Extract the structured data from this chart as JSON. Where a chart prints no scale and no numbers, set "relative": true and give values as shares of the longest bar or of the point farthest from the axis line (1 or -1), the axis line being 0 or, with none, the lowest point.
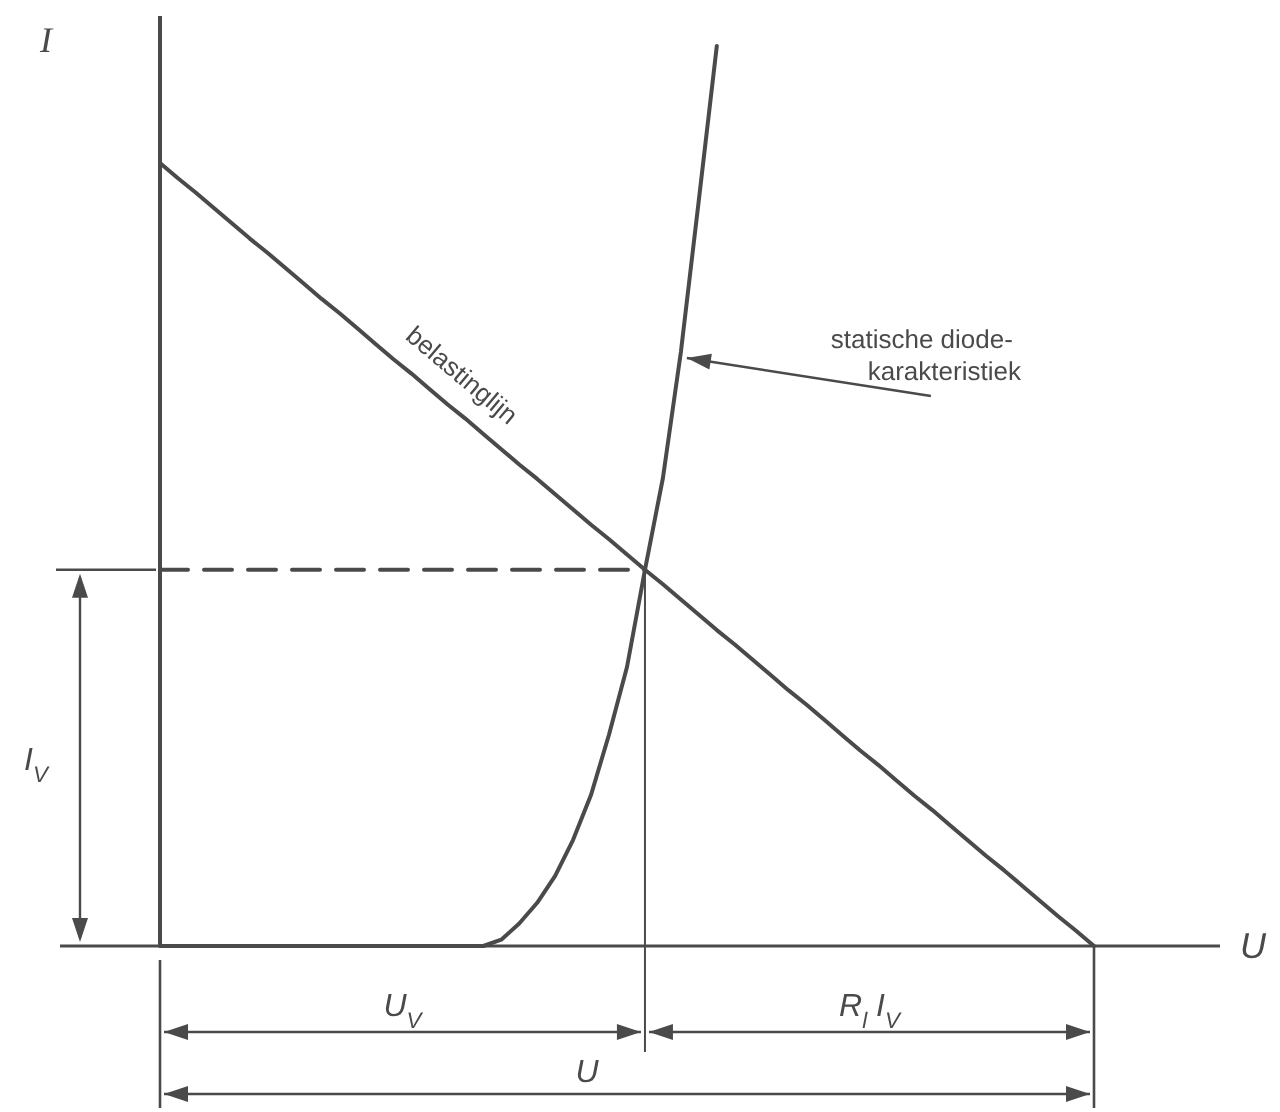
{
  "chart_data": {
    "type": "line",
    "relative": true,
    "xlabel": "U",
    "ylabel": "I",
    "categories": [
      null,
      null,
      null,
      null,
      null,
      null,
      null,
      null,
      null,
      null,
      null,
      null,
      null,
      null,
      null,
      null,
      null,
      null,
      null,
      null,
      null,
      null,
      null,
      null,
      null,
      null,
      null,
      null,
      null,
      null,
      null,
      null,
      null,
      null,
      null,
      null,
      null,
      null,
      null,
      null,
      null,
      null,
      null,
      null,
      null,
      null,
      null,
      null,
      null,
      null,
      null,
      null,
      null
    ],
    "series": [
      {
        "name": "belastinglijn",
        "color": "#4a4a4a",
        "values": [
          0.87,
          0.853,
          0.837,
          0.82,
          0.803,
          0.786,
          0.77,
          0.753,
          0.736,
          0.719,
          0.703,
          0.686,
          0.669,
          0.652,
          0.636,
          0.619,
          0.602,
          0.586,
          0.569,
          0.552,
          0.535,
          0.519,
          0.502,
          0.485,
          0.468,
          0.452,
          0.435,
          0.418,
          0.402,
          0.385,
          0.368,
          0.351,
          0.335,
          0.318,
          0.301,
          0.284,
          0.268,
          0.251,
          0.234,
          0.217,
          0.201,
          0.184,
          0.167,
          0.151,
          0.134,
          0.117,
          0.1,
          0.084,
          0.067,
          0.05,
          0.033,
          0.017,
          0
        ]
      },
      {
        "name": "statische diode-karakteristiek",
        "color": "#4a4a4a",
        "values": [
          0,
          0,
          0,
          0,
          0,
          0,
          0,
          0,
          0,
          0,
          0,
          0,
          0,
          0,
          0,
          0,
          0,
          0,
          0,
          0.007,
          0.025,
          0.048,
          0.078,
          0.118,
          0.168,
          0.235,
          0.31,
          0.418,
          0.52,
          0.66,
          0.829,
          1.0,
          null,
          null,
          null,
          null,
          null,
          null,
          null,
          null,
          null,
          null,
          null,
          null,
          null,
          null,
          null,
          null,
          null,
          null,
          null,
          null,
          null
        ]
      },
      {
        "color": "#4a4a4a",
        "line_style": "dashed",
        "values": [
          0.418,
          0.418,
          0.418,
          0.418,
          0.418,
          0.418,
          0.418,
          0.418,
          0.418,
          0.418,
          0.418,
          0.418,
          0.418,
          0.418,
          0.418,
          0.418,
          0.418,
          0.418,
          0.418,
          0.418,
          0.418,
          0.418,
          0.418,
          0.418,
          0.418,
          0.418,
          0.418,
          0.418,
          null,
          null,
          null,
          null,
          null,
          null,
          null,
          null,
          null,
          null,
          null,
          null,
          null,
          null,
          null,
          null,
          null,
          null,
          null,
          null,
          null,
          null,
          null,
          null,
          null
        ]
      }
    ],
    "annotations": [
      "I$_{V}$",
      "U$_{V}$",
      "R$_{l}$ I$_{V}$",
      "U"
    ]
  }
}
